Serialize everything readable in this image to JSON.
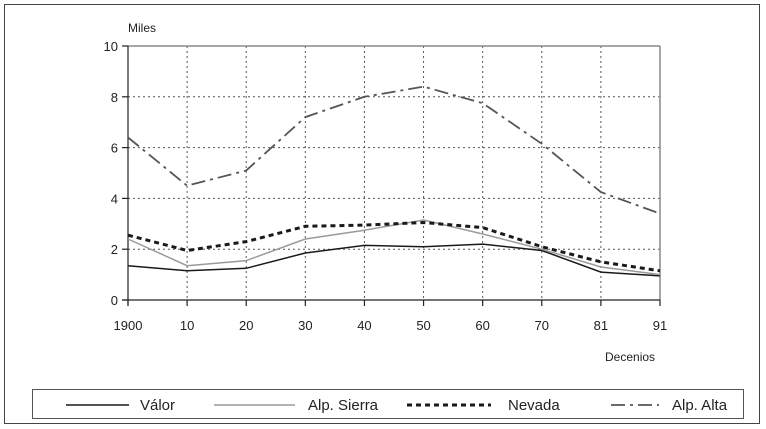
{
  "chart_data": {
    "type": "line",
    "x": [
      "1900",
      "10",
      "20",
      "30",
      "40",
      "50",
      "60",
      "70",
      "81",
      "91"
    ],
    "ylim": [
      0,
      10
    ],
    "yticks": [
      "0",
      "2",
      "4",
      "6",
      "8",
      "10"
    ],
    "ylabel": "Miles",
    "xlabel": "Decenios",
    "grid": true,
    "legend_position": "bottom",
    "series": [
      {
        "name": "Válor",
        "values": [
          1.35,
          1.15,
          1.25,
          1.85,
          2.15,
          2.1,
          2.2,
          1.95,
          1.1,
          0.95
        ],
        "color": "#1a1a1a",
        "dash": "solid"
      },
      {
        "name": "Alp. Sierra",
        "values": [
          2.4,
          1.35,
          1.55,
          2.4,
          2.75,
          3.15,
          2.6,
          2.0,
          1.3,
          1.0
        ],
        "color": "#9a9a9a",
        "dash": "solid"
      },
      {
        "name": "Nevada",
        "values": [
          2.55,
          1.95,
          2.3,
          2.9,
          2.95,
          3.05,
          2.85,
          2.1,
          1.5,
          1.15
        ],
        "color": "#1a1a1a",
        "dash": "dotted"
      },
      {
        "name": "Alp. Alta",
        "values": [
          6.4,
          4.5,
          5.1,
          7.2,
          8.0,
          8.4,
          7.75,
          6.15,
          4.25,
          3.4
        ],
        "color": "#555555",
        "dash": "dashdot"
      }
    ]
  }
}
